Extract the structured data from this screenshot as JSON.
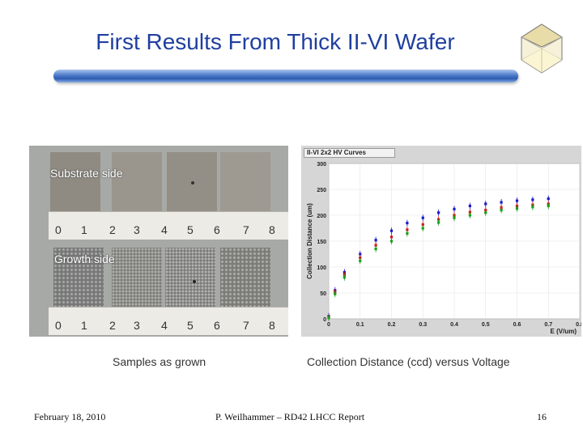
{
  "slide": {
    "title": "First Results From Thick  II-VI Wafer",
    "footer_date": "February 18, 2010",
    "footer_center": "P. Weilhammer – RD42 LHCC Report",
    "page_number": "16"
  },
  "photos": {
    "top_label": "Substrate side",
    "bottom_label": "Growth side",
    "ruler_marks": [
      "0",
      "1",
      "2",
      "3",
      "4",
      "5",
      "6",
      "7",
      "8"
    ],
    "caption": "Samples as grown"
  },
  "chart_data": {
    "type": "scatter",
    "header": "II-VI 2x2 HV Curves",
    "xlabel": "E (V/um)",
    "ylabel": "Collection Distance (um)",
    "xlim": [
      0,
      0.8
    ],
    "ylim": [
      0,
      300
    ],
    "xticks": [
      "0",
      "0.1",
      "0.2",
      "0.3",
      "0.4",
      "0.5",
      "0.6",
      "0.7",
      "0.8"
    ],
    "yticks": [
      "0",
      "50",
      "100",
      "150",
      "200",
      "250",
      "300"
    ],
    "colors": [
      "#1a1acc",
      "#d01818",
      "#18a018"
    ],
    "series": [
      {
        "x": [
          0,
          0.02,
          0.05,
          0.1,
          0.15,
          0.2,
          0.25,
          0.3,
          0.35,
          0.4,
          0.45,
          0.5,
          0.55,
          0.6,
          0.65,
          0.7
        ],
        "y": [
          5,
          55,
          90,
          125,
          152,
          170,
          185,
          195,
          205,
          212,
          218,
          222,
          225,
          228,
          230,
          232
        ]
      },
      {
        "x": [
          0,
          0.02,
          0.05,
          0.1,
          0.15,
          0.2,
          0.25,
          0.3,
          0.35,
          0.4,
          0.45,
          0.5,
          0.55,
          0.6,
          0.65,
          0.7
        ],
        "y": [
          3,
          52,
          85,
          118,
          142,
          158,
          172,
          182,
          192,
          200,
          206,
          210,
          215,
          218,
          220,
          222
        ]
      },
      {
        "x": [
          0,
          0.02,
          0.05,
          0.1,
          0.15,
          0.2,
          0.25,
          0.3,
          0.35,
          0.4,
          0.45,
          0.5,
          0.55,
          0.6,
          0.65,
          0.7
        ],
        "y": [
          2,
          48,
          80,
          112,
          135,
          150,
          165,
          175,
          186,
          195,
          200,
          205,
          210,
          213,
          216,
          218
        ]
      }
    ]
  },
  "chart_caption": "Collection Distance (ccd) versus Voltage"
}
